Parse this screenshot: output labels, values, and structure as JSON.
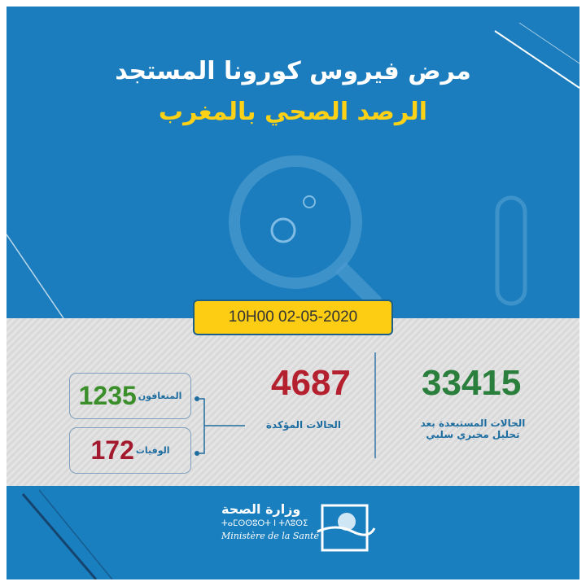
{
  "title": "مرض فيروس كورونا المستجد",
  "subtitle": "الرصد الصحي بالمغرب",
  "date": "10H00  02-05-2020",
  "excluded": {
    "value": "33415",
    "label_line1": "الحالات المستبعدة بعد",
    "label_line2": "تحليل مخبري سلبي",
    "color": "#2a7f3c"
  },
  "confirmed": {
    "value": "4687",
    "label": "الحالات المؤكدة",
    "color": "#b5202e"
  },
  "recovered": {
    "value": "1235",
    "label": "المتعافون",
    "color": "#3a8f2a"
  },
  "deaths": {
    "value": "172",
    "label": "الوفيات",
    "color": "#a3192d"
  },
  "footer": {
    "ministry_ar": "وزارة الصحة",
    "ministry_tifinagh": "ⵜⴰⵎⵙⵙⵓⵔⵜ ⵏ ⵜⴷⵓⵙⵉ",
    "ministry_fr": "Ministère de la Santé"
  }
}
